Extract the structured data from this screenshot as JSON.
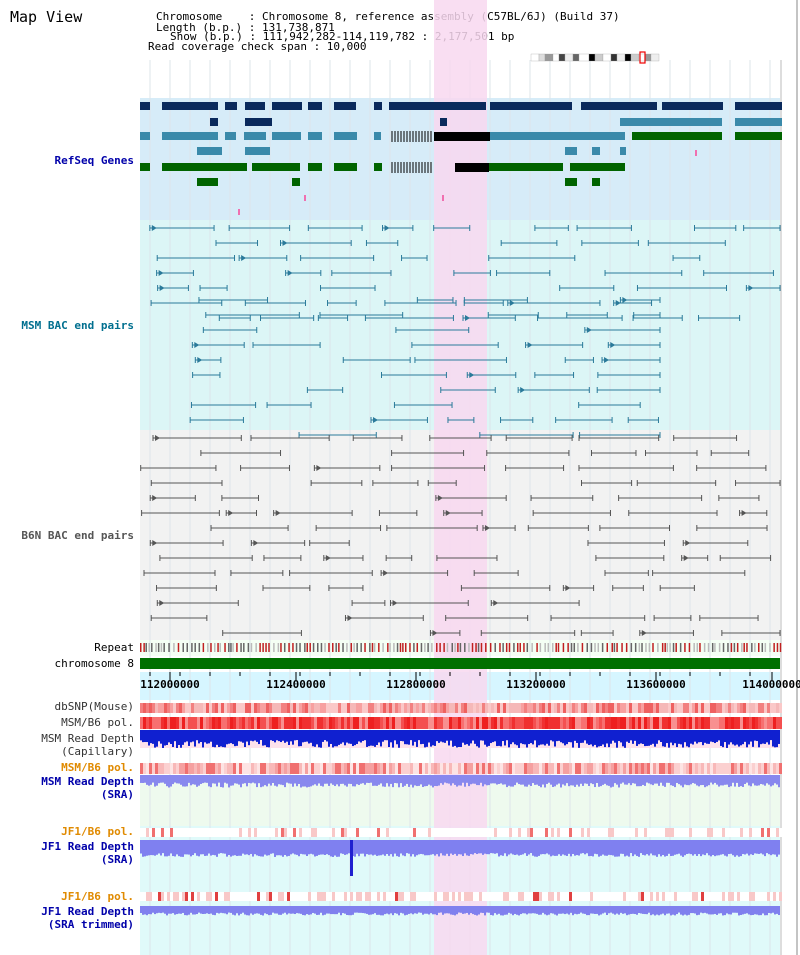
{
  "page_title": "Map View",
  "header": {
    "chromosome": "Chromosome    : Chromosome 8, reference assembly (C57BL/6J) (Build 37)",
    "length": "Length (b.p.) : 131,738,871",
    "show": "Show (b.p.) : 111,942,282-114,119,782 : 2,177,501 bp",
    "coverage": "Read coverage check span : 10,000"
  },
  "tracks": {
    "refseq": {
      "label": "RefSeq Genes",
      "color": "#0000aa"
    },
    "msm_bac": {
      "label": "MSM BAC end pairs",
      "color": "#006f8f"
    },
    "b6n_bac": {
      "label": "B6N BAC end pairs",
      "color": "#555555"
    },
    "repeat": {
      "label": "Repeat"
    },
    "chromosome": {
      "label": "chromosome 8"
    },
    "dbsnp": {
      "label": "dbSNP(Mouse)"
    },
    "msm_pol": {
      "label": "MSM/B6 pol."
    },
    "msm_depth_cap": {
      "label": "MSM Read Depth\n(Capillary)"
    },
    "msm_pol2": {
      "label": "MSM/B6 pol.",
      "color": "#e08a00"
    },
    "msm_depth_sra": {
      "label": "MSM Read Depth\n(SRA)",
      "color": "#0000aa"
    },
    "jf1_pol": {
      "label": "JF1/B6 pol.",
      "color": "#e08a00"
    },
    "jf1_depth_sra": {
      "label": "JF1 Read Depth\n(SRA)",
      "color": "#0000aa"
    },
    "jf1_pol2": {
      "label": "JF1/B6 pol.",
      "color": "#e08a00"
    },
    "jf1_depth_trim": {
      "label": "JF1 Read Depth\n(SRA trimmed)",
      "color": "#0000aa"
    }
  },
  "axis": {
    "ticks": [
      "112000000",
      "112400000",
      "112800000",
      "113200000",
      "113600000",
      "114000000"
    ]
  },
  "colors": {
    "highlight": "#f8d8f0",
    "navy": "#0a2a5c",
    "teal": "#3a8aaa",
    "green": "#006400",
    "chromosome": "#007000",
    "red": "#e03030",
    "blue": "#1020d0",
    "violet": "#8080f0"
  }
}
